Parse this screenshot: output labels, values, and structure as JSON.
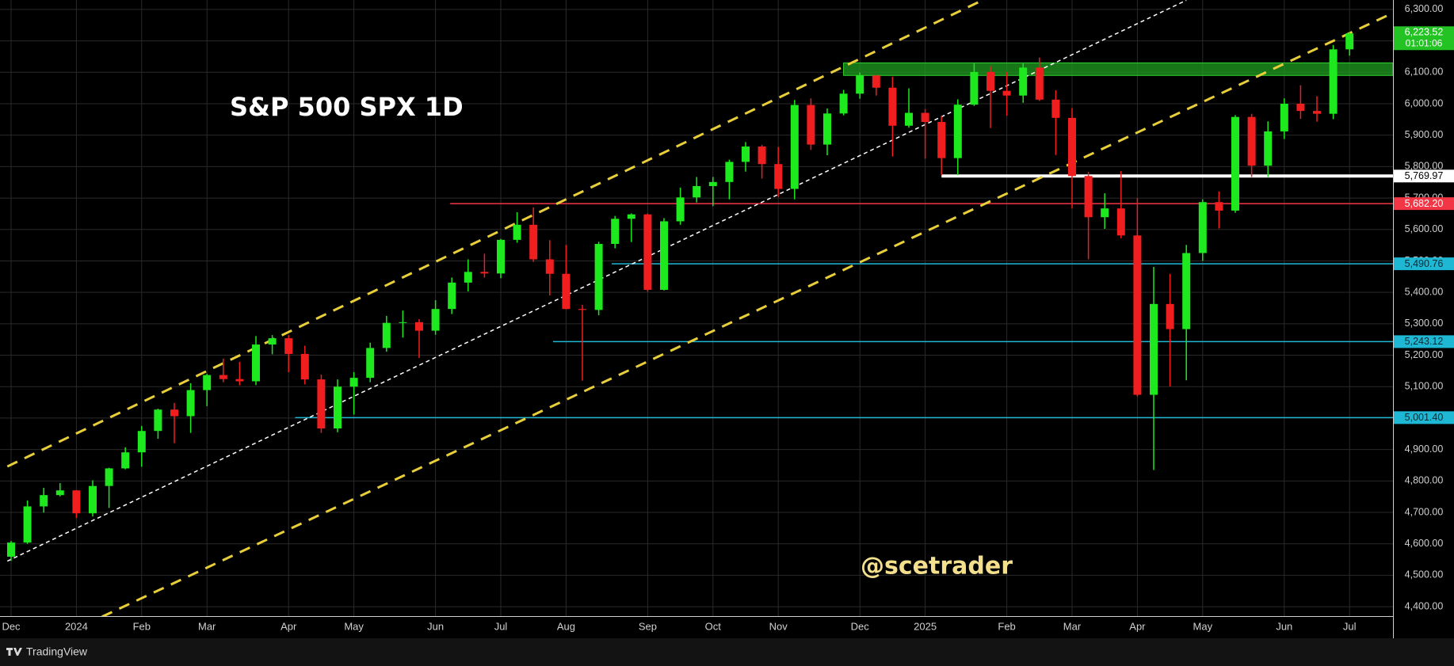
{
  "chart_data": {
    "type": "candlestick",
    "title": "S&P 500 SPX 1D",
    "watermark": "@scetrader",
    "brand": "TradingView",
    "categories": [
      "Dec",
      null,
      null,
      null,
      "2024",
      null,
      null,
      null,
      "Feb",
      null,
      null,
      null,
      "Mar",
      null,
      null,
      null,
      null,
      "Apr",
      null,
      null,
      null,
      "May",
      null,
      null,
      null,
      null,
      "Jun",
      null,
      null,
      null,
      "Jul",
      null,
      null,
      null,
      "Aug",
      null,
      null,
      null,
      null,
      "Sep",
      null,
      null,
      null,
      "Oct",
      null,
      null,
      null,
      "Nov",
      null,
      null,
      null,
      null,
      "Dec",
      null,
      null,
      null,
      "2025",
      null,
      null,
      null,
      null,
      "Feb",
      null,
      null,
      null,
      "Mar",
      null,
      null,
      null,
      "Apr",
      null,
      null,
      null,
      "May",
      null,
      null,
      null,
      null,
      "Jun",
      null,
      null,
      null,
      "Jul"
    ],
    "open": [
      4559,
      4604,
      4719,
      4755,
      4770,
      4697,
      4784,
      4840,
      4891,
      4959,
      5027,
      5006,
      5089,
      5137,
      5124,
      5117,
      5234,
      5254,
      5204,
      5123,
      4967,
      5100,
      5128,
      5223,
      5303,
      5305,
      5278,
      5347,
      5431,
      5465,
      5460,
      5567,
      5615,
      5505,
      5459,
      5347,
      5344,
      5554,
      5634,
      5648,
      5408,
      5626,
      5702,
      5738,
      5751,
      5815,
      5864,
      5808,
      5729,
      5996,
      5870,
      5969,
      6032,
      6090,
      6051,
      5930,
      5971,
      5942,
      5827,
      5997,
      6101,
      6041,
      6026,
      6115,
      6013,
      5955,
      5770,
      5639,
      5667,
      5581,
      5074,
      5363,
      5283,
      5525,
      5687,
      5660,
      5958,
      5803,
      5912,
      6000,
      5977,
      5968,
      6173
    ],
    "high": [
      4609,
      4738,
      4778,
      4793,
      4771,
      4802,
      4842,
      4907,
      4975,
      5030,
      5048,
      5111,
      5141,
      5189,
      5179,
      5261,
      5264,
      5264,
      5230,
      5138,
      5123,
      5146,
      5240,
      5325,
      5342,
      5315,
      5375,
      5447,
      5505,
      5523,
      5570,
      5655,
      5670,
      5566,
      5551,
      5360,
      5561,
      5643,
      5651,
      5651,
      5636,
      5733,
      5767,
      5767,
      5822,
      5878,
      5869,
      5863,
      6012,
      6017,
      5985,
      6044,
      6099,
      6092,
      6086,
      6049,
      5983,
      5960,
      6014,
      6128,
      6120,
      6101,
      6128,
      6147,
      6043,
      5986,
      5783,
      5715,
      5786,
      5700,
      5481,
      5459,
      5551,
      5696,
      5721,
      5964,
      5968,
      5944,
      6017,
      6059,
      6024,
      6187,
      6228
    ],
    "low": [
      4546,
      4600,
      4699,
      4751,
      4682,
      4687,
      4714,
      4837,
      4845,
      4934,
      4920,
      4953,
      5038,
      5114,
      5104,
      5105,
      5203,
      5146,
      5107,
      4953,
      4955,
      5011,
      5114,
      5211,
      5256,
      5191,
      5265,
      5331,
      5403,
      5447,
      5445,
      5558,
      5497,
      5390,
      5346,
      5119,
      5327,
      5540,
      5560,
      5402,
      5406,
      5615,
      5686,
      5674,
      5696,
      5784,
      5762,
      5703,
      5696,
      5853,
      5836,
      5963,
      6016,
      6026,
      5832,
      5924,
      5825,
      5773,
      5773,
      5993,
      5923,
      5962,
      6003,
      6009,
      5837,
      5667,
      5505,
      5602,
      5572,
      5069,
      4835,
      5101,
      5120,
      5500,
      5603,
      5653,
      5767,
      5767,
      5888,
      5952,
      5943,
      5951,
      6153
    ],
    "close": [
      4604,
      4719,
      4755,
      4770,
      4697,
      4784,
      4840,
      4891,
      4959,
      5027,
      5006,
      5089,
      5137,
      5124,
      5117,
      5234,
      5254,
      5204,
      5123,
      4967,
      5100,
      5128,
      5223,
      5303,
      5305,
      5278,
      5347,
      5431,
      5465,
      5460,
      5567,
      5615,
      5505,
      5459,
      5347,
      5344,
      5554,
      5634,
      5648,
      5408,
      5626,
      5702,
      5738,
      5751,
      5815,
      5864,
      5808,
      5729,
      5996,
      5870,
      5969,
      6032,
      6090,
      6051,
      5930,
      5971,
      5942,
      5827,
      5997,
      6101,
      6041,
      6026,
      6115,
      6013,
      5955,
      5770,
      5639,
      5667,
      5581,
      5074,
      5363,
      5283,
      5525,
      5687,
      5660,
      5958,
      5803,
      5912,
      6000,
      5977,
      5968,
      6173,
      6223.52
    ],
    "up_color": "#1ee81e",
    "down_color": "#f01e1e",
    "ylim": [
      4370,
      6330
    ],
    "yticks": [
      {
        "value": 4400,
        "label": "4,400.00"
      },
      {
        "value": 4500,
        "label": "4,500.00"
      },
      {
        "value": 4600,
        "label": "4,600.00"
      },
      {
        "value": 4700,
        "label": "4,700.00"
      },
      {
        "value": 4800,
        "label": "4,800.00"
      },
      {
        "value": 4900,
        "label": "4,900.00"
      },
      {
        "value": 5000,
        "label": "5,000.00"
      },
      {
        "value": 5100,
        "label": "5,100.00"
      },
      {
        "value": 5200,
        "label": "5,200.00"
      },
      {
        "value": 5300,
        "label": "5,300.00"
      },
      {
        "value": 5400,
        "label": "5,400.00"
      },
      {
        "value": 5500,
        "label": "5,500.00"
      },
      {
        "value": 5600,
        "label": "5,600.00"
      },
      {
        "value": 5700,
        "label": "5,700.00"
      },
      {
        "value": 5800,
        "label": "5,800.00"
      },
      {
        "value": 5900,
        "label": "5,900.00"
      },
      {
        "value": 6000,
        "label": "6,000.00"
      },
      {
        "value": 6100,
        "label": "6,100.00"
      },
      {
        "value": 6200,
        "label": "6,200.00"
      },
      {
        "value": 6300,
        "label": "6,300.00"
      }
    ],
    "grid": true,
    "trend_lines": [
      {
        "color": "#e8cf3a",
        "dash": "14 10",
        "width": 3,
        "x": [
          -0.23,
          59.5
        ],
        "y": [
          4846,
          6329
        ]
      },
      {
        "color": "#e8cf3a",
        "dash": "14 10",
        "width": 3,
        "x": [
          5.57,
          84.5
        ],
        "y": [
          4368,
          6285
        ]
      },
      {
        "color": "#ffffff",
        "dash": "5 4",
        "width": 1.5,
        "x": [
          -0.23,
          72.0
        ],
        "y": [
          4545,
          6329
        ]
      }
    ],
    "zone": {
      "low": 6090,
      "high": 6130,
      "from": 51,
      "color": "#1f9e1f"
    },
    "levels": [
      {
        "value": 5769.97,
        "label": "5,769.97",
        "color": "#ffffff",
        "text_color": "#000000",
        "from": 57,
        "width": 4
      },
      {
        "value": 5682.2,
        "label": "5,682.20",
        "color": "#f23645",
        "text_color": "#ffffff",
        "from": 26.9,
        "width": 1.5
      },
      {
        "value": 5490.76,
        "label": "5,490.76",
        "color": "#1fb8d4",
        "text_color": "#0b2a33",
        "from": 36.8,
        "width": 1.5
      },
      {
        "value": 5243.12,
        "label": "5,243.12",
        "color": "#1fb8d4",
        "text_color": "#0b2a33",
        "from": 33.2,
        "width": 1.5
      },
      {
        "value": 5001.4,
        "label": "5,001.40",
        "color": "#1fb8d4",
        "text_color": "#0b2a33",
        "from": 17.4,
        "width": 1.5
      }
    ],
    "last_price": {
      "value": 6223.52,
      "label": "6,223.52",
      "countdown": "01:01:06",
      "color": "#22c322"
    }
  }
}
